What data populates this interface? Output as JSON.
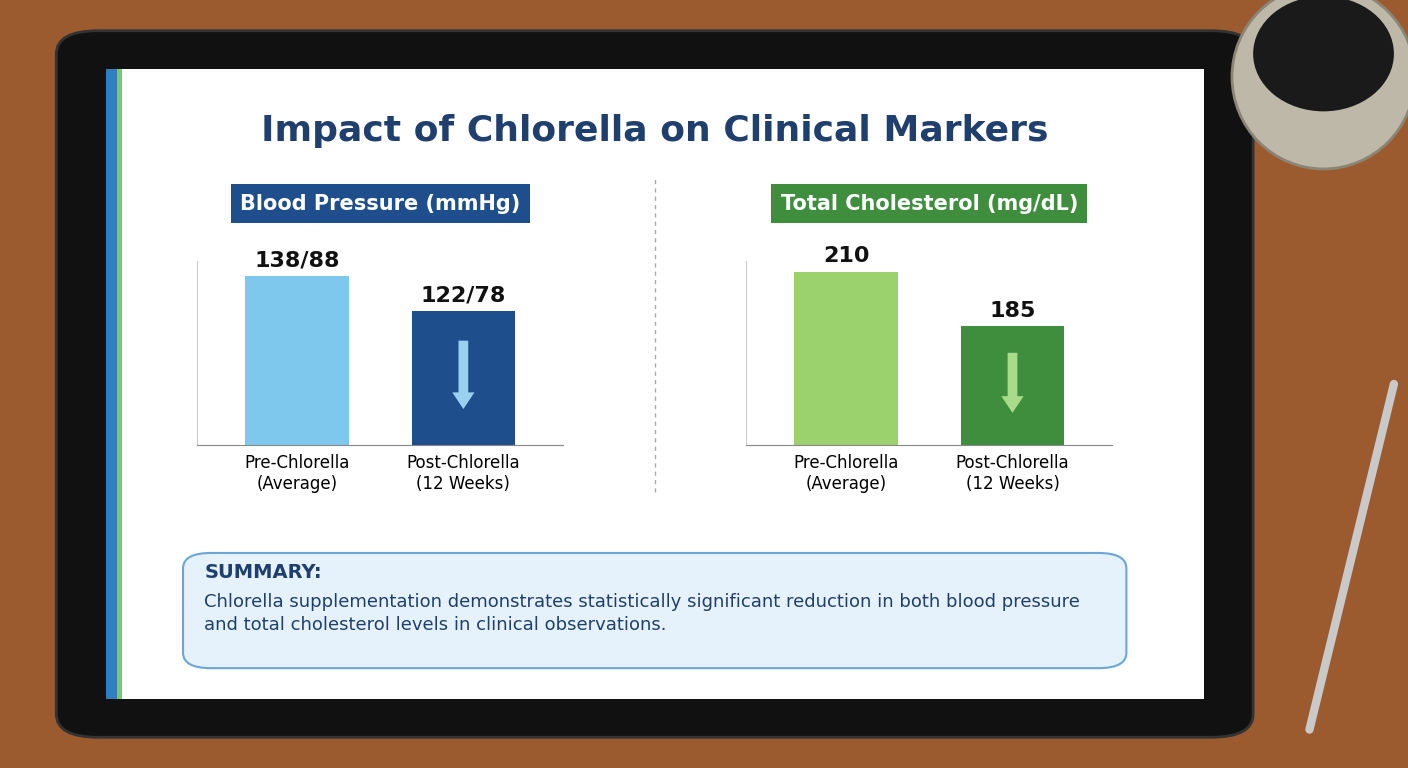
{
  "title": "Impact of Chlorella on Clinical Markers",
  "summary_label": "SUMMARY:",
  "summary": "Chlorella supplementation demonstrates statistically significant reduction in both blood pressure and total cholesterol levels in clinical observations.",
  "chart_data": [
    {
      "type": "bar",
      "title": "Blood Pressure (mmHg)",
      "categories": [
        "Pre-Chlorella\n(Average)",
        "Post-Chlorella\n(12 Weeks)"
      ],
      "values": [
        138,
        122
      ],
      "value_labels": [
        "138/88",
        "122/78"
      ],
      "colors": [
        "#7EC8EE",
        "#1F4E8C"
      ],
      "ylim": [
        60,
        145
      ],
      "yticks": [],
      "data_labels": true,
      "tick_labels": "x"
    },
    {
      "type": "bar",
      "title": "Total Cholesterol (mg/dL)",
      "categories": [
        "Pre-Chlorella\n(Average)",
        "Post-Chlorella\n(12 Weeks)"
      ],
      "values": [
        210,
        185
      ],
      "colors": [
        "#9BD26E",
        "#3E8E3E"
      ],
      "ylim": [
        130,
        215
      ],
      "yticks": [],
      "data_labels": true,
      "tick_labels": "x"
    }
  ]
}
